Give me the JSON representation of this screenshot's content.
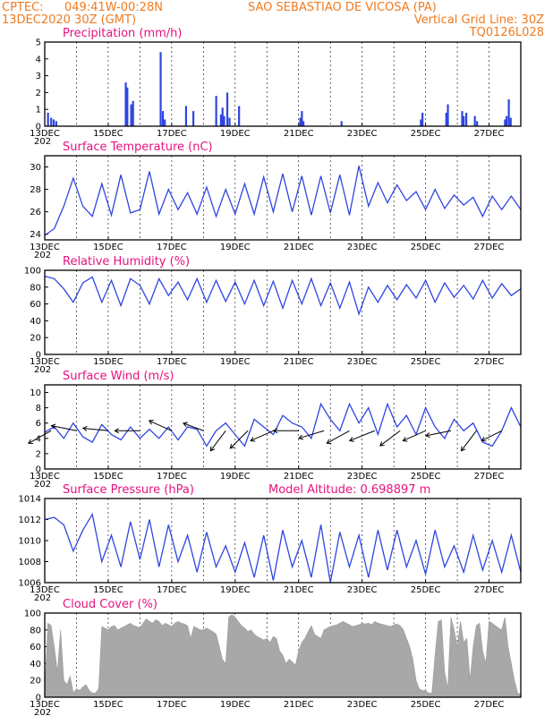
{
  "header": {
    "source": "CPTEC:",
    "coords": "049:41W-00:28N",
    "location": "SAO SEBASTIAO DE VICOSA (PA)",
    "date": "13DEC2020 30Z (GMT)",
    "grid_note": "Vertical Grid Line: 30Z",
    "model_code": "TQ0126L028"
  },
  "colors": {
    "header": "#f07a1e",
    "title": "#e8117f",
    "series": "#2f45e0",
    "cloud": "#a8a8a8",
    "arrow": "#000000"
  },
  "x_tick_labels": [
    "13DEC",
    "15DEC",
    "17DEC",
    "19DEC",
    "21DEC",
    "23DEC",
    "25DEC",
    "27DEC"
  ],
  "x_year_label": "202",
  "chart_data": [
    {
      "id": "precip",
      "type": "bar",
      "title": "Precipitation (mm/h)",
      "ylim": [
        0,
        5
      ],
      "yticks": [
        "0",
        "1",
        "2",
        "3",
        "4",
        "5"
      ],
      "x_days": [
        0.1,
        0.2,
        0.28,
        0.36,
        2.55,
        2.6,
        2.72,
        2.78,
        3.65,
        3.72,
        3.78,
        4.45,
        4.68,
        5.4,
        5.55,
        5.6,
        5.65,
        5.75,
        5.82,
        6.12,
        8.05,
        8.1,
        8.15,
        9.35,
        11.85,
        11.9,
        12.65,
        12.7,
        13.15,
        13.2,
        13.28,
        13.55,
        13.62,
        14.5,
        14.55,
        14.62,
        14.68
      ],
      "values": [
        0.8,
        0.5,
        0.4,
        0.3,
        2.6,
        2.3,
        1.3,
        1.5,
        4.4,
        0.9,
        0.4,
        1.2,
        0.9,
        1.8,
        0.7,
        1.1,
        0.6,
        2.0,
        0.5,
        1.2,
        0.5,
        0.9,
        0.3,
        0.3,
        0.4,
        0.8,
        0.8,
        1.3,
        0.9,
        0.6,
        0.8,
        0.6,
        0.3,
        0.4,
        0.6,
        1.6,
        0.5
      ]
    },
    {
      "id": "temperature",
      "type": "line",
      "title": "Surface Temperature (nC)",
      "ylim": [
        23.5,
        31
      ],
      "yticks": [
        "24",
        "26",
        "28",
        "30"
      ],
      "x_days": [
        0,
        0.3,
        0.6,
        0.9,
        1.2,
        1.5,
        1.8,
        2.1,
        2.4,
        2.7,
        3.0,
        3.3,
        3.6,
        3.9,
        4.2,
        4.5,
        4.8,
        5.1,
        5.4,
        5.7,
        6.0,
        6.3,
        6.6,
        6.9,
        7.2,
        7.5,
        7.8,
        8.1,
        8.4,
        8.7,
        9.0,
        9.3,
        9.6,
        9.9,
        10.2,
        10.5,
        10.8,
        11.1,
        11.4,
        11.7,
        12.0,
        12.3,
        12.6,
        12.9,
        13.2,
        13.5,
        13.8,
        14.1,
        14.4,
        14.7,
        15.0
      ],
      "values": [
        23.9,
        24.5,
        26.5,
        29.0,
        26.5,
        25.6,
        28.5,
        25.7,
        29.3,
        25.9,
        26.2,
        29.6,
        25.8,
        28.0,
        26.2,
        27.7,
        25.8,
        28.2,
        25.6,
        28.0,
        25.8,
        28.5,
        25.8,
        29.1,
        26.0,
        29.4,
        26.0,
        29.2,
        25.7,
        29.2,
        25.9,
        29.3,
        25.7,
        30.1,
        26.5,
        28.6,
        26.8,
        28.4,
        27.0,
        27.8,
        26.2,
        28.0,
        26.3,
        27.5,
        26.6,
        27.3,
        25.6,
        27.4,
        26.2,
        27.4,
        26.2
      ]
    },
    {
      "id": "humidity",
      "type": "line",
      "title": "Relative Humidity (%)",
      "ylim": [
        0,
        100
      ],
      "yticks": [
        "0",
        "20",
        "40",
        "60",
        "80",
        "100"
      ],
      "x_days": [
        0,
        0.3,
        0.6,
        0.9,
        1.2,
        1.5,
        1.8,
        2.1,
        2.4,
        2.7,
        3.0,
        3.3,
        3.6,
        3.9,
        4.2,
        4.5,
        4.8,
        5.1,
        5.4,
        5.7,
        6.0,
        6.3,
        6.6,
        6.9,
        7.2,
        7.5,
        7.8,
        8.1,
        8.4,
        8.7,
        9.0,
        9.3,
        9.6,
        9.9,
        10.2,
        10.5,
        10.8,
        11.1,
        11.4,
        11.7,
        12.0,
        12.3,
        12.6,
        12.9,
        13.2,
        13.5,
        13.8,
        14.1,
        14.4,
        14.7,
        15.0
      ],
      "values": [
        93,
        90,
        78,
        62,
        85,
        92,
        62,
        88,
        58,
        90,
        82,
        60,
        90,
        70,
        86,
        65,
        90,
        62,
        88,
        63,
        86,
        60,
        88,
        58,
        87,
        55,
        88,
        60,
        90,
        58,
        85,
        55,
        86,
        48,
        80,
        62,
        82,
        65,
        83,
        67,
        88,
        62,
        85,
        68,
        82,
        66,
        88,
        67,
        84,
        70,
        78
      ]
    },
    {
      "id": "wind",
      "type": "line",
      "title": "Surface Wind (m/s)",
      "ylim": [
        0,
        11
      ],
      "yticks": [
        "0",
        "2",
        "4",
        "6",
        "8",
        "10"
      ],
      "x_days": [
        0,
        0.3,
        0.6,
        0.9,
        1.2,
        1.5,
        1.8,
        2.1,
        2.4,
        2.7,
        3.0,
        3.3,
        3.6,
        3.9,
        4.2,
        4.5,
        4.8,
        5.1,
        5.4,
        5.7,
        6.0,
        6.3,
        6.6,
        6.9,
        7.2,
        7.5,
        7.8,
        8.1,
        8.4,
        8.7,
        9.0,
        9.3,
        9.6,
        9.9,
        10.2,
        10.5,
        10.8,
        11.1,
        11.4,
        11.7,
        12.0,
        12.3,
        12.6,
        12.9,
        13.2,
        13.5,
        13.8,
        14.1,
        14.4,
        14.7,
        15.0
      ],
      "values": [
        4.8,
        5.5,
        4.0,
        6.0,
        4.2,
        3.5,
        5.8,
        4.5,
        3.8,
        5.5,
        4.0,
        5.2,
        4.0,
        5.5,
        3.8,
        5.5,
        5.2,
        3.0,
        5.0,
        6.0,
        4.5,
        3.0,
        6.5,
        5.5,
        4.5,
        7.0,
        6.0,
        5.5,
        4.0,
        8.5,
        6.5,
        5.0,
        8.5,
        6.0,
        8.0,
        4.5,
        8.5,
        5.5,
        7.0,
        4.5,
        8.0,
        5.5,
        4.0,
        6.5,
        5.0,
        6.0,
        3.5,
        3.0,
        5.0,
        8.0,
        5.5
      ],
      "arrows": {
        "x_days": [
          0.2,
          1.0,
          2.0,
          3.0,
          4.0,
          5.0,
          5.7,
          6.4,
          7.2,
          8.0,
          8.8,
          9.6,
          10.4,
          11.2,
          12.0,
          12.8,
          13.6,
          14.4
        ],
        "u": [
          0.9,
          1.0,
          1.0,
          1.0,
          0.9,
          0.8,
          0.6,
          0.7,
          0.9,
          1.0,
          1.0,
          0.9,
          1.0,
          0.8,
          0.9,
          1.0,
          0.6,
          0.8
        ],
        "v": [
          -0.5,
          0.2,
          0.1,
          0.0,
          0.4,
          0.3,
          -0.8,
          -0.7,
          -0.4,
          0.0,
          -0.3,
          -0.5,
          -0.4,
          -0.6,
          -0.4,
          -0.2,
          -0.8,
          -0.4
        ]
      }
    },
    {
      "id": "pressure",
      "type": "line",
      "title": "Surface Pressure (hPa)",
      "extra_label": "Model Altitude: 0.698897 m",
      "ylim": [
        1006,
        1014
      ],
      "yticks": [
        "1006",
        "1008",
        "1010",
        "1012",
        "1014"
      ],
      "x_days": [
        0,
        0.3,
        0.6,
        0.9,
        1.2,
        1.5,
        1.8,
        2.1,
        2.4,
        2.7,
        3.0,
        3.3,
        3.6,
        3.9,
        4.2,
        4.5,
        4.8,
        5.1,
        5.4,
        5.7,
        6.0,
        6.3,
        6.6,
        6.9,
        7.2,
        7.5,
        7.8,
        8.1,
        8.4,
        8.7,
        9.0,
        9.3,
        9.6,
        9.9,
        10.2,
        10.5,
        10.8,
        11.1,
        11.4,
        11.7,
        12.0,
        12.3,
        12.6,
        12.9,
        13.2,
        13.5,
        13.8,
        14.1,
        14.4,
        14.7,
        15.0
      ],
      "values": [
        1012.0,
        1012.2,
        1011.5,
        1009.0,
        1011.0,
        1012.5,
        1008.0,
        1010.5,
        1007.5,
        1011.8,
        1008.2,
        1012.0,
        1007.5,
        1011.5,
        1008.0,
        1010.5,
        1007.0,
        1010.8,
        1007.5,
        1009.5,
        1007.0,
        1009.8,
        1006.5,
        1010.5,
        1006.2,
        1011.0,
        1007.5,
        1010.0,
        1006.5,
        1011.5,
        1006.0,
        1010.8,
        1007.5,
        1010.5,
        1006.5,
        1011.0,
        1007.2,
        1011.0,
        1007.5,
        1010.0,
        1006.8,
        1011.0,
        1007.5,
        1009.5,
        1007.0,
        1010.5,
        1007.2,
        1010.0,
        1007.0,
        1010.5,
        1007.0
      ]
    },
    {
      "id": "cloud",
      "type": "area",
      "title": "Cloud Cover (%)",
      "ylim": [
        0,
        100
      ],
      "yticks": [
        "0",
        "20",
        "40",
        "60",
        "80",
        "100"
      ],
      "x_days": [
        0,
        0.1,
        0.2,
        0.3,
        0.4,
        0.5,
        0.6,
        0.7,
        0.8,
        0.9,
        1.0,
        1.1,
        1.2,
        1.3,
        1.4,
        1.5,
        1.6,
        1.7,
        1.8,
        1.9,
        2.0,
        2.1,
        2.2,
        2.3,
        2.4,
        2.5,
        2.6,
        2.7,
        2.8,
        2.9,
        3.0,
        3.1,
        3.2,
        3.3,
        3.4,
        3.5,
        3.6,
        3.7,
        3.8,
        3.9,
        4.0,
        4.1,
        4.2,
        4.3,
        4.4,
        4.5,
        4.6,
        4.7,
        4.8,
        4.9,
        5.0,
        5.1,
        5.2,
        5.3,
        5.4,
        5.5,
        5.6,
        5.7,
        5.8,
        5.9,
        6.0,
        6.1,
        6.2,
        6.3,
        6.4,
        6.5,
        6.6,
        6.7,
        6.8,
        6.9,
        7.0,
        7.1,
        7.2,
        7.3,
        7.4,
        7.5,
        7.6,
        7.7,
        7.8,
        7.9,
        8.0,
        8.1,
        8.2,
        8.3,
        8.4,
        8.5,
        8.6,
        8.7,
        8.8,
        8.9,
        9.0,
        9.1,
        9.2,
        9.3,
        9.4,
        9.5,
        9.6,
        9.7,
        9.8,
        9.9,
        10.0,
        10.1,
        10.2,
        10.3,
        10.4,
        10.5,
        10.6,
        10.7,
        10.8,
        10.9,
        11.0,
        11.1,
        11.2,
        11.3,
        11.4,
        11.5,
        11.6,
        11.7,
        11.8,
        11.9,
        12.0,
        12.1,
        12.2,
        12.3,
        12.4,
        12.5,
        12.6,
        12.7,
        12.8,
        12.9,
        13.0,
        13.1,
        13.2,
        13.3,
        13.4,
        13.5,
        13.6,
        13.7,
        13.8,
        13.9,
        14.0,
        14.1,
        14.2,
        14.3,
        14.4,
        14.5,
        14.6,
        14.7,
        14.8,
        14.9,
        15.0
      ],
      "values": [
        8,
        88,
        85,
        60,
        30,
        80,
        20,
        15,
        25,
        5,
        10,
        8,
        12,
        15,
        8,
        5,
        5,
        10,
        84,
        82,
        80,
        84,
        85,
        80,
        82,
        84,
        86,
        88,
        85,
        84,
        82,
        88,
        93,
        90,
        88,
        92,
        90,
        85,
        88,
        86,
        84,
        88,
        90,
        88,
        87,
        85,
        70,
        84,
        82,
        80,
        80,
        82,
        80,
        78,
        75,
        60,
        45,
        40,
        95,
        98,
        95,
        90,
        85,
        82,
        78,
        80,
        75,
        72,
        70,
        68,
        70,
        65,
        72,
        70,
        55,
        50,
        40,
        45,
        42,
        38,
        55,
        65,
        70,
        78,
        85,
        75,
        72,
        70,
        80,
        82,
        84,
        85,
        86,
        88,
        90,
        88,
        86,
        84,
        85,
        86,
        88,
        87,
        88,
        86,
        90,
        88,
        87,
        86,
        85,
        84,
        86,
        87,
        85,
        80,
        70,
        60,
        45,
        20,
        10,
        8,
        8,
        5,
        5,
        50,
        90,
        92,
        30,
        10,
        95,
        80,
        60,
        90,
        65,
        70,
        20,
        60,
        85,
        88,
        55,
        40,
        90,
        88,
        85,
        82,
        80,
        95,
        60,
        40,
        20,
        5,
        3
      ]
    }
  ]
}
